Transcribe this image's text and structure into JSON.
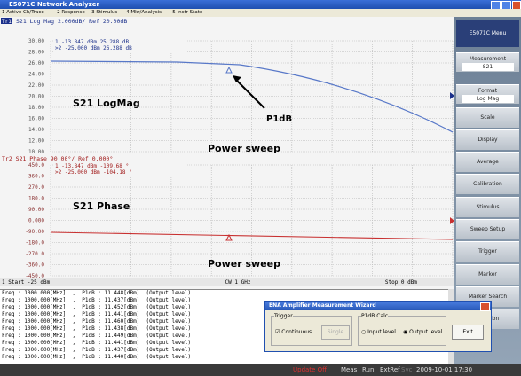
{
  "window": {
    "title": "E5071C Network Analyzer"
  },
  "menu": [
    "1 Active Ch/Trace",
    "2 Response",
    "3 Stimulus",
    "4 Mkr/Analysis",
    "5 Instr State"
  ],
  "upper": {
    "trace": "Tr1",
    "header": "S21 Log Mag 2.000dB/ Ref 20.00dB",
    "yticks": [
      "30.00",
      "28.00",
      "26.00",
      "24.00",
      "22.00",
      "20.00",
      "18.00",
      "16.00",
      "14.00",
      "12.00",
      "10.00"
    ],
    "markers": [
      "1  -13.847 dBm  25.288 dB",
      ">2  -25.000 dBm  26.288 dB"
    ],
    "label": "S21 LogMag",
    "arrow_label": "P1dB",
    "sweep": "Power sweep"
  },
  "lower": {
    "header": "Tr2 S21 Phase 90.00°/ Ref 0.000°",
    "yticks": [
      "450.0",
      "360.0",
      "270.0",
      "180.0",
      "90.00",
      "0.000",
      "-90.00",
      "-180.0",
      "-270.0",
      "-360.0",
      "-450.0"
    ],
    "markers": [
      "1  -13.847 dBm  -109.68 °",
      ">2  -25.000 dBm  -104.18 °"
    ],
    "label": "S21 Phase",
    "sweep": "Power sweep"
  },
  "stimulus": {
    "start": "1  Start -25 dBm",
    "center": "CW 1 GHz",
    "stop": "Stop 0 dBm"
  },
  "log": [
    "Freq : 1000.000[MHz]  ,  P1dB : 11.448[dBm]  (Output level)",
    "Freq : 1000.000[MHz]  ,  P1dB : 11.437[dBm]  (Output level)",
    "Freq : 1000.000[MHz]  ,  P1dB : 11.452[dBm]  (Output level)",
    "Freq : 1000.000[MHz]  ,  P1dB : 11.441[dBm]  (Output level)",
    "Freq : 1000.000[MHz]  ,  P1dB : 11.460[dBm]  (Output level)",
    "Freq : 1000.000[MHz]  ,  P1dB : 11.438[dBm]  (Output level)",
    "Freq : 1000.000[MHz]  ,  P1dB : 11.449[dBm]  (Output level)",
    "Freq : 1000.000[MHz]  ,  P1dB : 11.441[dBm]  (Output level)",
    "Freq : 1000.000[MHz]  ,  P1dB : 11.437[dBm]  (Output level)",
    "Freq : 1000.000[MHz]  ,  P1dB : 11.440[dBm]  (Output level)"
  ],
  "dialog": {
    "title": "ENA Amplifier Measurement Wizard",
    "trigger": "Trigger",
    "continuous": "Continuous",
    "single": "Single",
    "calc": "P1dB Calc",
    "input": "Input level",
    "output": "Output level",
    "exit": "Exit"
  },
  "softkeys": [
    {
      "label": "E5071C Menu"
    },
    {
      "label": "Measurement",
      "sub": "S21"
    },
    {
      "label": "Format",
      "sub": "Log Mag"
    },
    {
      "label": "Scale"
    },
    {
      "label": "Display"
    },
    {
      "label": "Average"
    },
    {
      "label": "Calibration"
    },
    {
      "label": "Stimulus"
    },
    {
      "label": "Sweep Setup"
    },
    {
      "label": "Trigger"
    },
    {
      "label": "Marker"
    },
    {
      "label": "Marker Search"
    },
    {
      "label": "Function"
    }
  ],
  "status": [
    "Update Off",
    "Meas",
    "Run",
    "ExtRef",
    "Svc",
    "2009-10-01 17:30"
  ]
}
